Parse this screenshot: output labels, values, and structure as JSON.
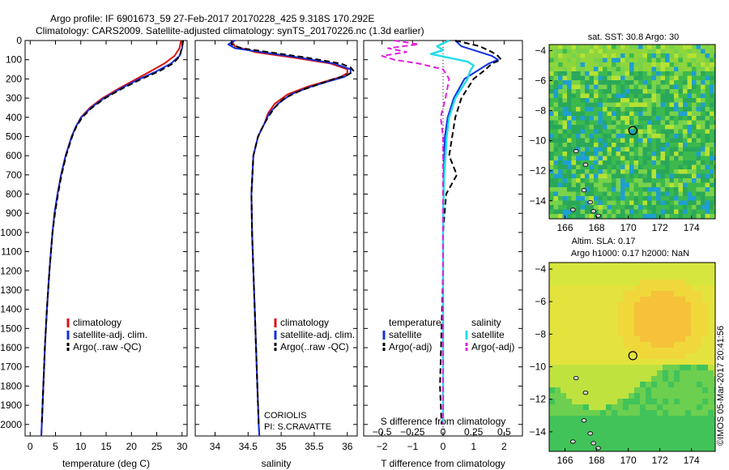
{
  "figure": {
    "title_line1": "Argo profile: IF 6901673_59 27-Feb-2017 20170228_425 9.318S 170.292E",
    "title_line2": "Climatology: CARS2009. Satellite-adjusted climatology: synTS_20170226.nc (1.3d earlier)",
    "side_credit": "©IMOS 05-Mar-2017 20:41:56",
    "institution_line1": "CORIOLIS",
    "institution_line2": "PI: S.CRAVATTE"
  },
  "colors": {
    "climatology": "#dd1111",
    "satellite": "#1030dd",
    "argo": "#000000",
    "sat_salinity": "#22dde8",
    "argo_salinity_diff": "#e020e0"
  },
  "chart_data": [
    {
      "type": "line",
      "id": "temperature",
      "xlabel": "temperature (deg C)",
      "ylabel": "",
      "xlim": [
        -1,
        31
      ],
      "ylim": [
        2060,
        0
      ],
      "xticks": [
        0,
        5,
        10,
        15,
        20,
        25,
        30
      ],
      "yticks": [
        0,
        100,
        200,
        300,
        400,
        500,
        600,
        700,
        800,
        900,
        1000,
        1100,
        1200,
        1300,
        1400,
        1500,
        1600,
        1700,
        1800,
        1900,
        2000
      ],
      "legend": [
        "climatology",
        "satellite-adj. clim.",
        "Argo(..raw -QC)"
      ],
      "series": [
        {
          "name": "climatology",
          "depth": [
            0,
            40,
            80,
            120,
            160,
            200,
            250,
            300,
            350,
            400,
            450,
            500,
            600,
            700,
            800,
            900,
            1000,
            1200,
            1400,
            1600,
            1800,
            2000,
            2060
          ],
          "values": [
            29.8,
            29.5,
            28.5,
            26.5,
            23.8,
            21.0,
            17.5,
            14.3,
            11.8,
            10.0,
            9.0,
            8.2,
            7.0,
            6.1,
            5.4,
            4.8,
            4.4,
            3.8,
            3.3,
            2.9,
            2.6,
            2.3,
            2.2
          ]
        },
        {
          "name": "satellite-adj. clim.",
          "depth": [
            0,
            40,
            80,
            120,
            160,
            200,
            250,
            300,
            350,
            400,
            450,
            500,
            600,
            700,
            800,
            900,
            1000,
            1200,
            1400,
            1600,
            1800,
            2000,
            2060
          ],
          "values": [
            30.2,
            30.0,
            29.5,
            27.8,
            25.0,
            21.6,
            17.9,
            14.6,
            12.0,
            10.1,
            9.0,
            8.2,
            7.0,
            6.1,
            5.4,
            4.8,
            4.4,
            3.8,
            3.3,
            2.9,
            2.6,
            2.3,
            2.2
          ]
        },
        {
          "name": "Argo(..raw -QC)",
          "depth": [
            0,
            20,
            40,
            80,
            120,
            160,
            200,
            250,
            300,
            350,
            400,
            450,
            500,
            600,
            700,
            800,
            900,
            1000,
            1200,
            1400,
            1600,
            1800,
            2000
          ],
          "values": [
            30.2,
            30.1,
            29.9,
            29.6,
            28.2,
            25.5,
            22.0,
            18.2,
            14.8,
            12.2,
            10.3,
            9.1,
            8.3,
            7.1,
            6.2,
            5.5,
            4.9,
            4.4,
            3.8,
            3.3,
            2.9,
            2.6,
            2.3
          ]
        }
      ]
    },
    {
      "type": "line",
      "id": "salinity",
      "xlabel": "salinity",
      "ylabel": "",
      "xlim": [
        33.7,
        36.15
      ],
      "ylim": [
        2060,
        0
      ],
      "xticks": [
        34,
        34.5,
        35,
        35.5,
        36
      ],
      "legend": [
        "climatology",
        "satellite-adj. clim.",
        "Argo(..raw -QC)"
      ],
      "series": [
        {
          "name": "climatology",
          "depth": [
            0,
            30,
            60,
            90,
            120,
            150,
            170,
            190,
            210,
            240,
            280,
            330,
            380,
            430,
            500,
            600,
            800,
            1000,
            1200,
            1400,
            1600,
            1800,
            2000,
            2060
          ],
          "values": [
            34.25,
            34.3,
            34.6,
            35.2,
            35.75,
            36.0,
            36.0,
            35.9,
            35.7,
            35.4,
            35.1,
            34.9,
            34.8,
            34.75,
            34.65,
            34.58,
            34.55,
            34.56,
            34.58,
            34.6,
            34.62,
            34.64,
            34.66,
            34.67
          ]
        },
        {
          "name": "satellite-adj. clim.",
          "depth": [
            0,
            20,
            40,
            60,
            90,
            120,
            150,
            170,
            190,
            210,
            240,
            280,
            330,
            380,
            430,
            500,
            600,
            800,
            1000,
            1200,
            1400,
            1600,
            1800,
            2000,
            2060
          ],
          "values": [
            34.3,
            34.2,
            34.3,
            34.7,
            35.3,
            35.8,
            36.05,
            36.05,
            35.95,
            35.75,
            35.45,
            35.15,
            34.95,
            34.82,
            34.75,
            34.65,
            34.58,
            34.55,
            34.56,
            34.58,
            34.6,
            34.62,
            34.64,
            34.66,
            34.67
          ]
        },
        {
          "name": "Argo(..raw -QC)",
          "depth": [
            0,
            20,
            40,
            60,
            90,
            120,
            140,
            160,
            180,
            200,
            230,
            260,
            300,
            350,
            400,
            450,
            500,
            600,
            800,
            1000,
            1200,
            1400,
            1600,
            1800,
            2000
          ],
          "values": [
            34.25,
            34.25,
            34.4,
            34.8,
            35.4,
            35.9,
            36.05,
            36.1,
            36.0,
            35.8,
            35.55,
            35.3,
            35.05,
            34.9,
            34.8,
            34.72,
            34.65,
            34.58,
            34.55,
            34.56,
            34.58,
            34.6,
            34.62,
            34.64,
            34.66
          ]
        }
      ]
    },
    {
      "type": "line",
      "id": "difference",
      "xlabel": "T difference from climatology",
      "xlabel_top": "S difference from climatology",
      "ylabel": "",
      "xlim": [
        -2.6,
        2.6
      ],
      "ylim": [
        2060,
        0
      ],
      "xticks": [
        -2,
        -1,
        0,
        1,
        2
      ],
      "xticks_S": [
        -0.5,
        -0.25,
        0,
        0.25,
        0.5
      ],
      "legend_headers": [
        "temperature",
        "salinity"
      ],
      "legend": [
        "satellite",
        "Argo(-adj)",
        "satellite",
        "Argo(-adj)"
      ],
      "series": [
        {
          "name": "satellite",
          "quantity": "temperature",
          "depth": [
            0,
            30,
            60,
            80,
            100,
            120,
            150,
            200,
            300,
            400,
            500,
            700,
            1000,
            1500,
            2000
          ],
          "values": [
            0.4,
            0.6,
            1.2,
            1.6,
            1.8,
            1.5,
            1.2,
            0.7,
            0.35,
            0.15,
            0.06,
            0.02,
            0.0,
            0.0,
            0.0
          ]
        },
        {
          "name": "Argo(-adj)",
          "quantity": "temperature",
          "depth": [
            0,
            30,
            60,
            80,
            100,
            120,
            150,
            200,
            300,
            400,
            500,
            600,
            700,
            800,
            1000,
            1200,
            1500,
            1800,
            2000
          ],
          "values": [
            0.4,
            1.2,
            1.6,
            1.8,
            1.9,
            1.6,
            1.4,
            1.0,
            0.6,
            0.4,
            0.3,
            0.2,
            0.45,
            0.1,
            0.0,
            0.0,
            -0.05,
            -0.1,
            -0.05
          ]
        },
        {
          "name": "satellite",
          "quantity": "salinity",
          "depth": [
            0,
            30,
            50,
            70,
            90,
            110,
            130,
            160,
            200,
            300,
            400,
            500,
            600,
            700,
            900,
            1200,
            1500,
            2000
          ],
          "values": [
            0.05,
            -0.05,
            0.0,
            -0.1,
            0.05,
            0.2,
            0.25,
            0.22,
            0.2,
            0.1,
            0.05,
            0.03,
            0.02,
            0.01,
            0.0,
            0.0,
            0.0,
            0.0
          ]
        },
        {
          "name": "Argo(-adj)",
          "quantity": "salinity",
          "depth": [
            0,
            20,
            40,
            60,
            80,
            100,
            120,
            150,
            200,
            300,
            400,
            500,
            700,
            1000,
            1500,
            2000
          ],
          "values": [
            -0.4,
            -0.2,
            -0.45,
            -0.3,
            -0.5,
            -0.4,
            -0.2,
            0.0,
            0.05,
            0.02,
            -0.02,
            0.0,
            0.0,
            0.0,
            0.0,
            0.0
          ]
        }
      ]
    },
    {
      "type": "heatmap",
      "id": "sst_map",
      "title": "sat. SST: 30.8 Argo: 30",
      "xlim": [
        165,
        175.5
      ],
      "ylim": [
        -15.2,
        -3.6
      ],
      "xticks": [
        166,
        168,
        170,
        172,
        174
      ],
      "yticks": [
        -4,
        -6,
        -8,
        -10,
        -12,
        -14
      ],
      "profile_location": [
        170.29,
        -9.32
      ]
    },
    {
      "type": "heatmap",
      "id": "sla_map",
      "title": "Altim. SLA: 0.17",
      "subtitle": "Argo h1000: 0.17 h2000: NaN",
      "xlim": [
        165,
        175.5
      ],
      "ylim": [
        -15.2,
        -3.6
      ],
      "xticks": [
        166,
        168,
        170,
        172,
        174
      ],
      "yticks": [
        -4,
        -6,
        -8,
        -10,
        -12,
        -14
      ],
      "profile_location": [
        170.29,
        -9.32
      ]
    }
  ]
}
